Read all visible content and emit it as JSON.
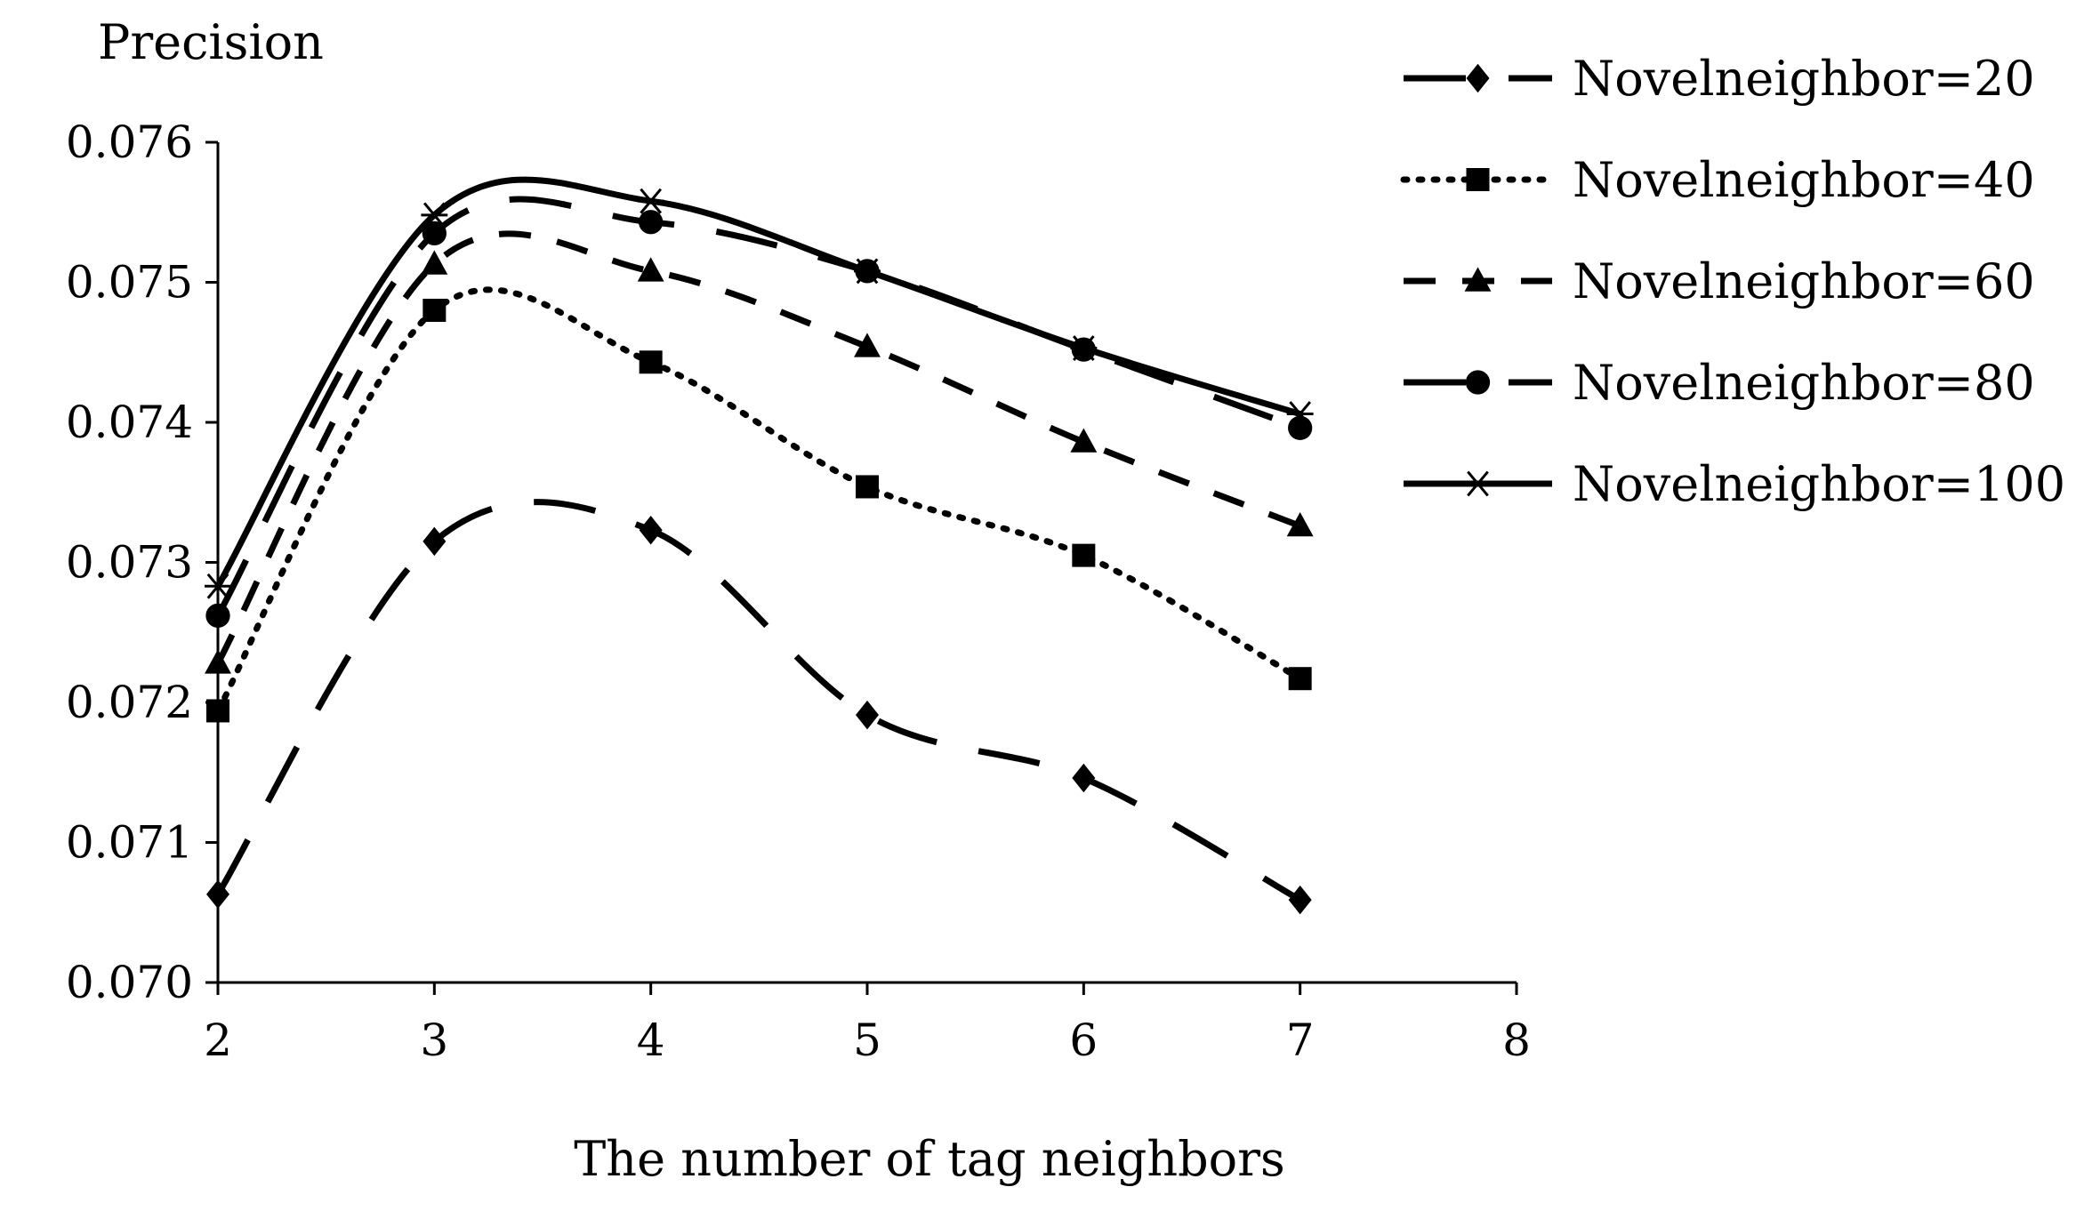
{
  "chart_data": {
    "type": "line",
    "title": "",
    "xlabel": "The number of tag neighbors",
    "ylabel": "Precision",
    "x": [
      2,
      3,
      4,
      5,
      6,
      7
    ],
    "xlim": [
      2,
      8
    ],
    "xticks": [
      "2",
      "3",
      "4",
      "5",
      "6",
      "7",
      "8"
    ],
    "ylim": [
      0.07,
      0.076
    ],
    "yticks": [
      "0.070",
      "0.071",
      "0.072",
      "0.073",
      "0.074",
      "0.075",
      "0.076"
    ],
    "grid": false,
    "legend_position": "right",
    "series": [
      {
        "name": "Novelneighbor=20",
        "marker": "diamond",
        "line_style": "long-dash",
        "values": [
          0.07063,
          0.07315,
          0.07323,
          0.07191,
          0.07146,
          0.07059
        ]
      },
      {
        "name": "Novelneighbor=40",
        "marker": "square",
        "line_style": "dotted",
        "values": [
          0.07194,
          0.0748,
          0.07443,
          0.07354,
          0.07305,
          0.07217
        ]
      },
      {
        "name": "Novelneighbor=60",
        "marker": "triangle",
        "line_style": "dashed",
        "values": [
          0.07228,
          0.07513,
          0.07508,
          0.07454,
          0.07386,
          0.07326
        ]
      },
      {
        "name": "Novelneighbor=80",
        "marker": "circle",
        "line_style": "long-dash",
        "values": [
          0.07262,
          0.07535,
          0.07543,
          0.07508,
          0.07452,
          0.07396
        ]
      },
      {
        "name": "Novelneighbor=100",
        "marker": "asterisk",
        "line_style": "solid",
        "values": [
          0.07283,
          0.07548,
          0.07558,
          0.07508,
          0.07453,
          0.07406
        ]
      }
    ]
  }
}
